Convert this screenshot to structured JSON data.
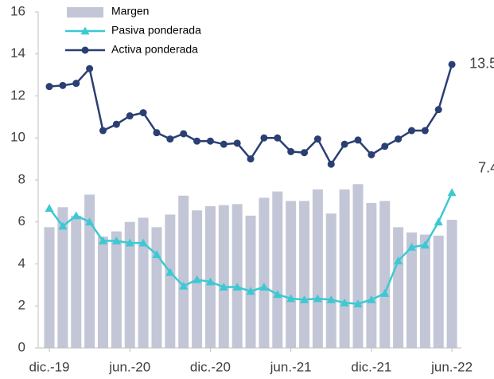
{
  "chart_data": {
    "type": "bar-line",
    "categories": [
      "dic.-19",
      null,
      null,
      null,
      null,
      null,
      "jun.-20",
      null,
      null,
      null,
      null,
      null,
      "dic.-20",
      null,
      null,
      null,
      null,
      null,
      "jun.-21",
      null,
      null,
      null,
      null,
      null,
      "dic.-21",
      null,
      null,
      null,
      null,
      null,
      "jun.-22"
    ],
    "series": [
      {
        "name": "Margen",
        "type": "bar",
        "color": "#c3c6d6",
        "values": [
          5.75,
          6.7,
          6.3,
          7.3,
          5.3,
          5.55,
          6.0,
          6.2,
          5.75,
          6.35,
          7.25,
          6.55,
          6.75,
          6.8,
          6.85,
          6.3,
          7.15,
          7.45,
          7.0,
          7.0,
          7.55,
          6.4,
          7.55,
          7.8,
          6.9,
          7.0,
          5.75,
          5.5,
          5.4,
          5.35,
          6.1
        ]
      },
      {
        "name": "Pasiva ponderada",
        "type": "line",
        "marker": "triangle",
        "color": "#3cc9d3",
        "values": [
          6.65,
          5.8,
          6.3,
          6.0,
          5.1,
          5.1,
          5.0,
          5.0,
          4.45,
          3.6,
          2.95,
          3.25,
          3.15,
          2.9,
          2.9,
          2.7,
          2.9,
          2.55,
          2.35,
          2.3,
          2.35,
          2.3,
          2.15,
          2.1,
          2.3,
          2.6,
          4.15,
          4.8,
          4.9,
          6.0,
          7.4
        ]
      },
      {
        "name": "Activa ponderada",
        "type": "line",
        "marker": "circle",
        "color": "#2a3f73",
        "values": [
          12.45,
          12.5,
          12.6,
          13.3,
          10.35,
          10.65,
          11.05,
          11.2,
          10.25,
          9.95,
          10.2,
          9.85,
          9.85,
          9.7,
          9.75,
          9.0,
          10.0,
          10.0,
          9.35,
          9.3,
          9.95,
          8.75,
          9.7,
          9.9,
          9.2,
          9.6,
          9.95,
          10.35,
          10.35,
          11.35,
          13.5
        ]
      }
    ],
    "ylim": [
      0,
      16
    ],
    "yticks": [
      0,
      2,
      4,
      6,
      8,
      10,
      12,
      14,
      16
    ],
    "legend": "top-left"
  }
}
